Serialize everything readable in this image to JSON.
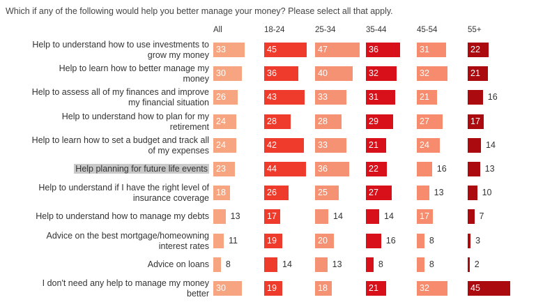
{
  "question": "Which if any of the following would help you better manage your money? Please select all that apply.",
  "highlighted_row": 5,
  "colors": {
    "All": "#f7a580",
    "18-24": "#ef3b2c",
    "25-34": "#f59273",
    "35-44": "#d7101a",
    "45-54": "#f68c6d",
    "55+": "#ab0a0e"
  },
  "chart_data": {
    "type": "bar",
    "orientation": "horizontal",
    "layout": "small-multiples",
    "title": "Which if any of the following would help you better manage your money? Please select all that apply.",
    "categories": [
      [
        "Help to understand how to use investments to",
        "grow my money"
      ],
      [
        "Help to learn how to better manage my",
        "money"
      ],
      [
        "Help to assess all of my finances and improve",
        "my financial situation"
      ],
      [
        "Help to understand how to plan for my",
        "retirement"
      ],
      [
        "Help to learn how to set a budget and track all",
        "of my expenses"
      ],
      [
        "Help planning for future life events"
      ],
      [
        "Help to understand if I have the right level of",
        "insurance coverage"
      ],
      [
        "Help to understand how to manage my debts"
      ],
      [
        "Advice on the best mortgage/homeowning",
        "interest rates"
      ],
      [
        "Advice on loans"
      ],
      [
        "I don't need any help to manage my money",
        "better"
      ]
    ],
    "series": [
      {
        "name": "All",
        "values": [
          33,
          30,
          26,
          24,
          24,
          23,
          18,
          13,
          11,
          8,
          30
        ]
      },
      {
        "name": "18-24",
        "values": [
          45,
          36,
          43,
          28,
          42,
          44,
          26,
          17,
          19,
          14,
          19
        ]
      },
      {
        "name": "25-34",
        "values": [
          47,
          40,
          33,
          28,
          33,
          36,
          25,
          14,
          20,
          13,
          18
        ]
      },
      {
        "name": "35-44",
        "values": [
          36,
          32,
          31,
          29,
          21,
          22,
          27,
          14,
          16,
          8,
          21
        ]
      },
      {
        "name": "45-54",
        "values": [
          31,
          32,
          21,
          27,
          24,
          16,
          13,
          17,
          8,
          8,
          32
        ]
      },
      {
        "name": "55+",
        "values": [
          22,
          21,
          16,
          17,
          14,
          13,
          10,
          7,
          3,
          2,
          45
        ]
      }
    ]
  }
}
